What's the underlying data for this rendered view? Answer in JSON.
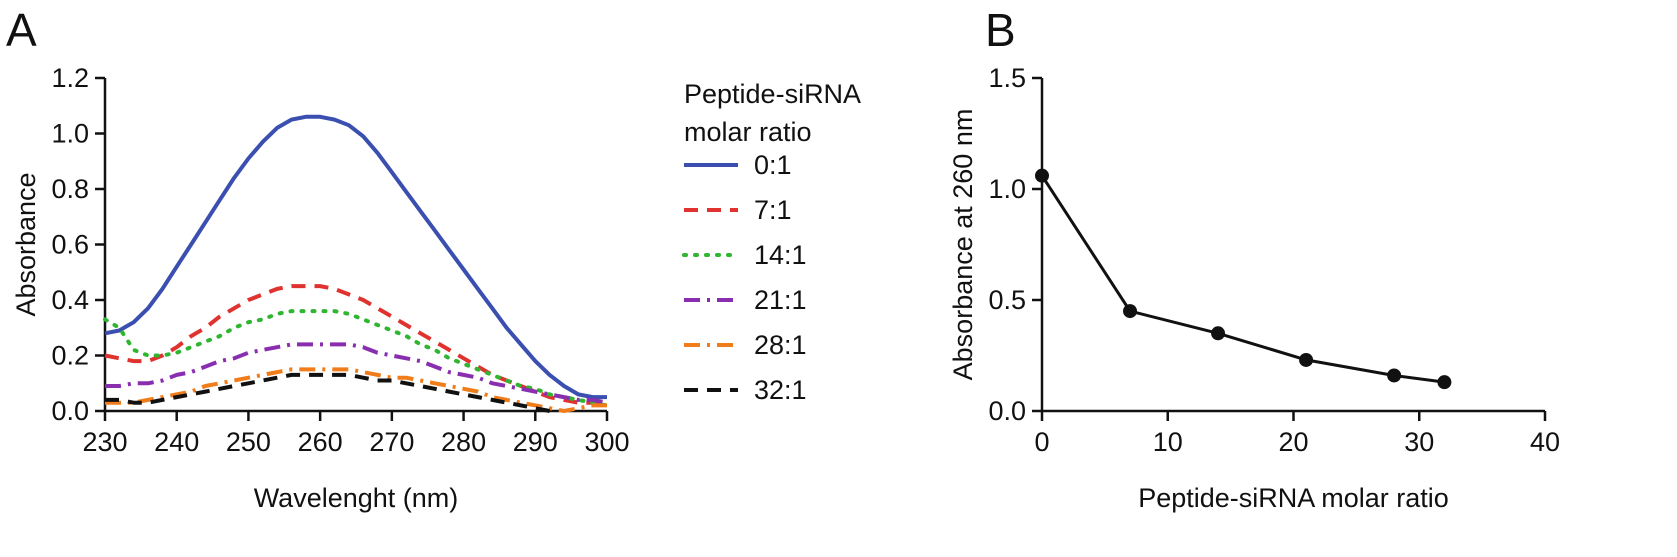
{
  "figure": {
    "panel_a_label": "A",
    "panel_b_label": "B"
  },
  "chart_data": [
    {
      "panel": "A",
      "type": "line",
      "xlabel": "Wavelenght (nm)",
      "ylabel": "Absorbance",
      "xlim": [
        230,
        300
      ],
      "ylim": [
        0,
        1.2
      ],
      "xticks": [
        230,
        240,
        250,
        260,
        270,
        280,
        290,
        300
      ],
      "yticks": [
        0.0,
        0.2,
        0.4,
        0.6,
        0.8,
        1.0,
        1.2
      ],
      "xtick_labels": [
        "230",
        "240",
        "250",
        "260",
        "270",
        "280",
        "290",
        "300"
      ],
      "ytick_labels": [
        "0.0",
        "0.2",
        "0.4",
        "0.6",
        "0.8",
        "1.0",
        "1.2"
      ],
      "grid": false,
      "legend": {
        "title_lines": [
          "Peptide-siRNA",
          "molar ratio"
        ],
        "placement": "right"
      },
      "series": [
        {
          "name": "0:1",
          "color": "#3a4fb0",
          "dash": "solid",
          "x": [
            230,
            232,
            234,
            236,
            238,
            240,
            242,
            244,
            246,
            248,
            250,
            252,
            254,
            256,
            258,
            260,
            262,
            264,
            266,
            268,
            270,
            272,
            274,
            276,
            278,
            280,
            282,
            284,
            286,
            288,
            290,
            292,
            294,
            296,
            298,
            300
          ],
          "y": [
            0.28,
            0.29,
            0.32,
            0.37,
            0.44,
            0.52,
            0.6,
            0.68,
            0.76,
            0.84,
            0.91,
            0.97,
            1.02,
            1.05,
            1.06,
            1.06,
            1.05,
            1.03,
            0.99,
            0.93,
            0.86,
            0.79,
            0.72,
            0.65,
            0.58,
            0.51,
            0.44,
            0.37,
            0.3,
            0.24,
            0.18,
            0.13,
            0.09,
            0.06,
            0.05,
            0.05
          ]
        },
        {
          "name": "7:1",
          "color": "#e0322f",
          "dash": "dash",
          "x": [
            230,
            232,
            234,
            236,
            238,
            240,
            242,
            244,
            246,
            248,
            250,
            252,
            254,
            256,
            258,
            260,
            262,
            264,
            266,
            268,
            270,
            272,
            274,
            276,
            278,
            280,
            282,
            284,
            286,
            288,
            290,
            292,
            294,
            296,
            298,
            300
          ],
          "y": [
            0.2,
            0.19,
            0.18,
            0.18,
            0.2,
            0.23,
            0.27,
            0.3,
            0.34,
            0.37,
            0.4,
            0.42,
            0.44,
            0.45,
            0.45,
            0.45,
            0.44,
            0.42,
            0.4,
            0.37,
            0.34,
            0.31,
            0.28,
            0.25,
            0.22,
            0.19,
            0.16,
            0.13,
            0.11,
            0.09,
            0.07,
            0.05,
            0.04,
            0.03,
            0.03,
            0.03
          ]
        },
        {
          "name": "14:1",
          "color": "#2fb52f",
          "dash": "dot",
          "x": [
            230,
            232,
            234,
            236,
            238,
            240,
            242,
            244,
            246,
            248,
            250,
            252,
            254,
            256,
            258,
            260,
            262,
            264,
            266,
            268,
            270,
            272,
            274,
            276,
            278,
            280,
            282,
            284,
            286,
            288,
            290,
            292,
            294,
            296,
            298,
            300
          ],
          "y": [
            0.33,
            0.3,
            0.22,
            0.2,
            0.2,
            0.21,
            0.23,
            0.25,
            0.27,
            0.3,
            0.32,
            0.33,
            0.35,
            0.36,
            0.36,
            0.36,
            0.36,
            0.35,
            0.33,
            0.31,
            0.29,
            0.27,
            0.24,
            0.22,
            0.19,
            0.17,
            0.15,
            0.13,
            0.11,
            0.09,
            0.08,
            0.06,
            0.05,
            0.04,
            0.03,
            0.02
          ]
        },
        {
          "name": "21:1",
          "color": "#8a2eb0",
          "dash": "dashdot",
          "x": [
            230,
            232,
            234,
            236,
            238,
            240,
            242,
            244,
            246,
            248,
            250,
            252,
            254,
            256,
            258,
            260,
            262,
            264,
            266,
            268,
            270,
            272,
            274,
            276,
            278,
            280,
            282,
            284,
            286,
            288,
            290,
            292,
            294,
            296,
            298,
            300
          ],
          "y": [
            0.09,
            0.09,
            0.1,
            0.1,
            0.11,
            0.13,
            0.14,
            0.16,
            0.18,
            0.19,
            0.21,
            0.22,
            0.23,
            0.24,
            0.24,
            0.24,
            0.24,
            0.24,
            0.23,
            0.21,
            0.2,
            0.19,
            0.18,
            0.16,
            0.14,
            0.13,
            0.12,
            0.1,
            0.09,
            0.08,
            0.07,
            0.06,
            0.05,
            0.04,
            0.04,
            0.03
          ]
        },
        {
          "name": "28:1",
          "color": "#f07d1a",
          "dash": "dashdot",
          "x": [
            230,
            232,
            234,
            236,
            238,
            240,
            242,
            244,
            246,
            248,
            250,
            252,
            254,
            256,
            258,
            260,
            262,
            264,
            266,
            268,
            270,
            272,
            274,
            276,
            278,
            280,
            282,
            284,
            286,
            288,
            290,
            292,
            294,
            296,
            298,
            300
          ],
          "y": [
            0.03,
            0.03,
            0.03,
            0.04,
            0.05,
            0.06,
            0.07,
            0.09,
            0.1,
            0.11,
            0.12,
            0.13,
            0.14,
            0.15,
            0.15,
            0.15,
            0.15,
            0.15,
            0.14,
            0.13,
            0.12,
            0.12,
            0.11,
            0.1,
            0.09,
            0.08,
            0.07,
            0.05,
            0.04,
            0.03,
            0.02,
            0.01,
            0.0,
            0.01,
            0.02,
            0.02
          ]
        },
        {
          "name": "32:1",
          "color": "#111111",
          "dash": "dash",
          "x": [
            230,
            232,
            234,
            236,
            238,
            240,
            242,
            244,
            246,
            248,
            250,
            252,
            254,
            256,
            258,
            260,
            262,
            264,
            266,
            268,
            270,
            272,
            274,
            276,
            278,
            280,
            282,
            284,
            286,
            288,
            290,
            292
          ],
          "y": [
            0.04,
            0.04,
            0.03,
            0.03,
            0.04,
            0.05,
            0.06,
            0.07,
            0.08,
            0.09,
            0.1,
            0.11,
            0.12,
            0.13,
            0.13,
            0.13,
            0.13,
            0.13,
            0.12,
            0.11,
            0.11,
            0.1,
            0.09,
            0.08,
            0.07,
            0.06,
            0.05,
            0.04,
            0.03,
            0.02,
            0.01,
            0.0
          ]
        }
      ]
    },
    {
      "panel": "B",
      "type": "line",
      "xlabel": "Peptide-siRNA molar ratio",
      "ylabel": "Absorbance at 260 nm",
      "xlim": [
        0,
        40
      ],
      "ylim": [
        0,
        1.5
      ],
      "xticks": [
        0,
        10,
        20,
        30,
        40
      ],
      "yticks": [
        0.0,
        0.5,
        1.0,
        1.5
      ],
      "xtick_labels": [
        "0",
        "10",
        "20",
        "30",
        "40"
      ],
      "ytick_labels": [
        "0.0",
        "0.5",
        "1.0",
        "1.5"
      ],
      "grid": false,
      "series": [
        {
          "color": "#111111",
          "marker": "circle",
          "x": [
            0,
            7,
            14,
            21,
            28,
            32
          ],
          "y": [
            1.06,
            0.45,
            0.35,
            0.23,
            0.16,
            0.13
          ]
        }
      ]
    }
  ]
}
